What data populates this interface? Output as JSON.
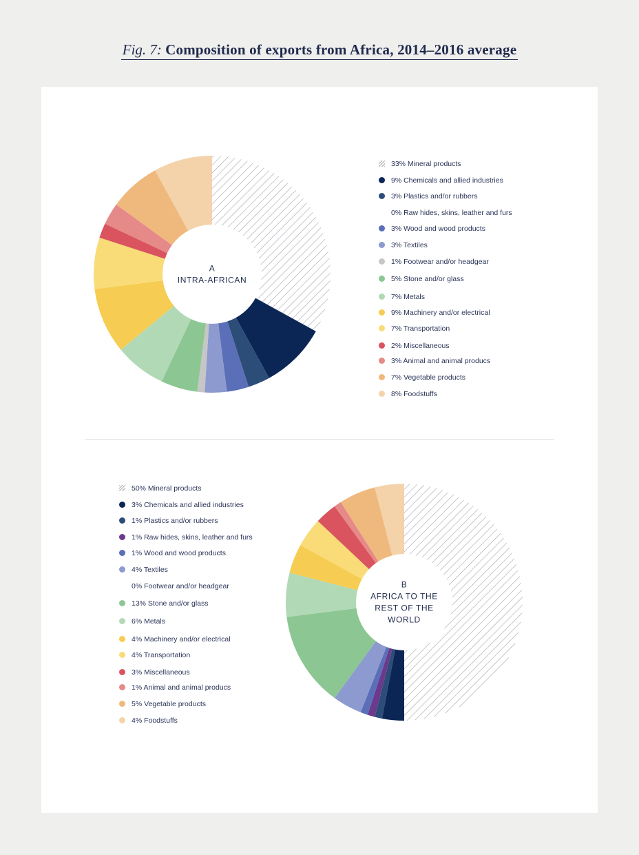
{
  "figure": {
    "label": "Fig. 7:",
    "title": "Composition of exports from Africa, 2014–2016 average"
  },
  "chart_data": [
    {
      "type": "pie",
      "name": "A",
      "subtitle": "INTRA-AFRICAN",
      "center_lines": [
        "A",
        "INTRA-AFRICAN"
      ],
      "legend_position": "right",
      "slices": [
        {
          "label": "33% Mineral products",
          "value": 33,
          "pattern": "hatched",
          "color": "#b9bcc4"
        },
        {
          "label": "9% Chemicals and allied industries",
          "value": 9,
          "color": "#0b2654"
        },
        {
          "label": "3% Plastics and/or rubbers",
          "value": 3,
          "color": "#2d4d79"
        },
        {
          "label": "0% Raw hides, skins, leather and furs",
          "value": 0,
          "color": "#6b3a8c"
        },
        {
          "label": "3% Wood and wood products",
          "value": 3,
          "color": "#5b6fb8"
        },
        {
          "label": "3% Textiles",
          "value": 3,
          "color": "#8d9ad0"
        },
        {
          "label": "1% Footwear and/or headgear",
          "value": 1,
          "color": "#c6c6c6"
        },
        {
          "label": "5% Stone and/or glass",
          "value": 5,
          "color": "#8cc793"
        },
        {
          "label": "7% Metals",
          "value": 7,
          "color": "#b2d9b6"
        },
        {
          "label": "9% Machinery and/or electrical",
          "value": 9,
          "color": "#f6cd52"
        },
        {
          "label": "7% Transportation",
          "value": 7,
          "color": "#f9dc78"
        },
        {
          "label": "2% Miscellaneous",
          "value": 2,
          "color": "#d9545e"
        },
        {
          "label": "3% Animal and animal producs",
          "value": 3,
          "color": "#e58a88"
        },
        {
          "label": "7% Vegetable products",
          "value": 7,
          "color": "#efb97d"
        },
        {
          "label": "8% Foodstuffs",
          "value": 8,
          "color": "#f4d3ab"
        }
      ]
    },
    {
      "type": "pie",
      "name": "B",
      "subtitle": "AFRICA TO THE REST OF THE WORLD",
      "center_lines": [
        "B",
        "AFRICA TO THE",
        "REST OF THE",
        "WORLD"
      ],
      "legend_position": "left",
      "slices": [
        {
          "label": "50% Mineral products",
          "value": 50,
          "pattern": "hatched",
          "color": "#b9bcc4"
        },
        {
          "label": "3% Chemicals and allied industries",
          "value": 3,
          "color": "#0b2654"
        },
        {
          "label": "1% Plastics and/or rubbers",
          "value": 1,
          "color": "#2d4d79"
        },
        {
          "label": "1% Raw hides, skins, leather and furs",
          "value": 1,
          "color": "#6b3a8c"
        },
        {
          "label": "1% Wood and wood products",
          "value": 1,
          "color": "#5b6fb8"
        },
        {
          "label": "4% Textiles",
          "value": 4,
          "color": "#8d9ad0"
        },
        {
          "label": "0% Footwear and/or headgear",
          "value": 0,
          "color": "#c6c6c6"
        },
        {
          "label": "13% Stone and/or glass",
          "value": 13,
          "color": "#8cc793"
        },
        {
          "label": "6% Metals",
          "value": 6,
          "color": "#b2d9b6"
        },
        {
          "label": "4% Machinery and/or electrical",
          "value": 4,
          "color": "#f6cd52"
        },
        {
          "label": "4% Transportation",
          "value": 4,
          "color": "#f9dc78"
        },
        {
          "label": "3% Miscellaneous",
          "value": 3,
          "color": "#d9545e"
        },
        {
          "label": "1% Animal and animal producs",
          "value": 1,
          "color": "#e58a88"
        },
        {
          "label": "5% Vegetable products",
          "value": 5,
          "color": "#efb97d"
        },
        {
          "label": "4% Foodstuffs",
          "value": 4,
          "color": "#f4d3ab"
        }
      ]
    }
  ]
}
